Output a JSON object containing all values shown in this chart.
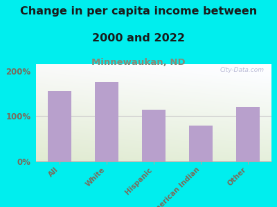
{
  "categories": [
    "All",
    "White",
    "Hispanic",
    "American Indian",
    "Other"
  ],
  "values": [
    155,
    175,
    115,
    80,
    120
  ],
  "bar_color": "#b8a0cc",
  "title_line1": "Change in per capita income between",
  "title_line2": "2000 and 2022",
  "subtitle": "Minnewaukan, ND",
  "ylabel_ticks": [
    "0%",
    "100%",
    "200%"
  ],
  "yticks": [
    0,
    100,
    200
  ],
  "ylim": [
    0,
    215
  ],
  "background_outer": "#00eeee",
  "watermark": "City-Data.com",
  "title_fontsize": 11.5,
  "subtitle_fontsize": 9.5,
  "tick_label_color": "#7a6a5a",
  "title_color": "#1a1a1a",
  "subtitle_color": "#888877"
}
